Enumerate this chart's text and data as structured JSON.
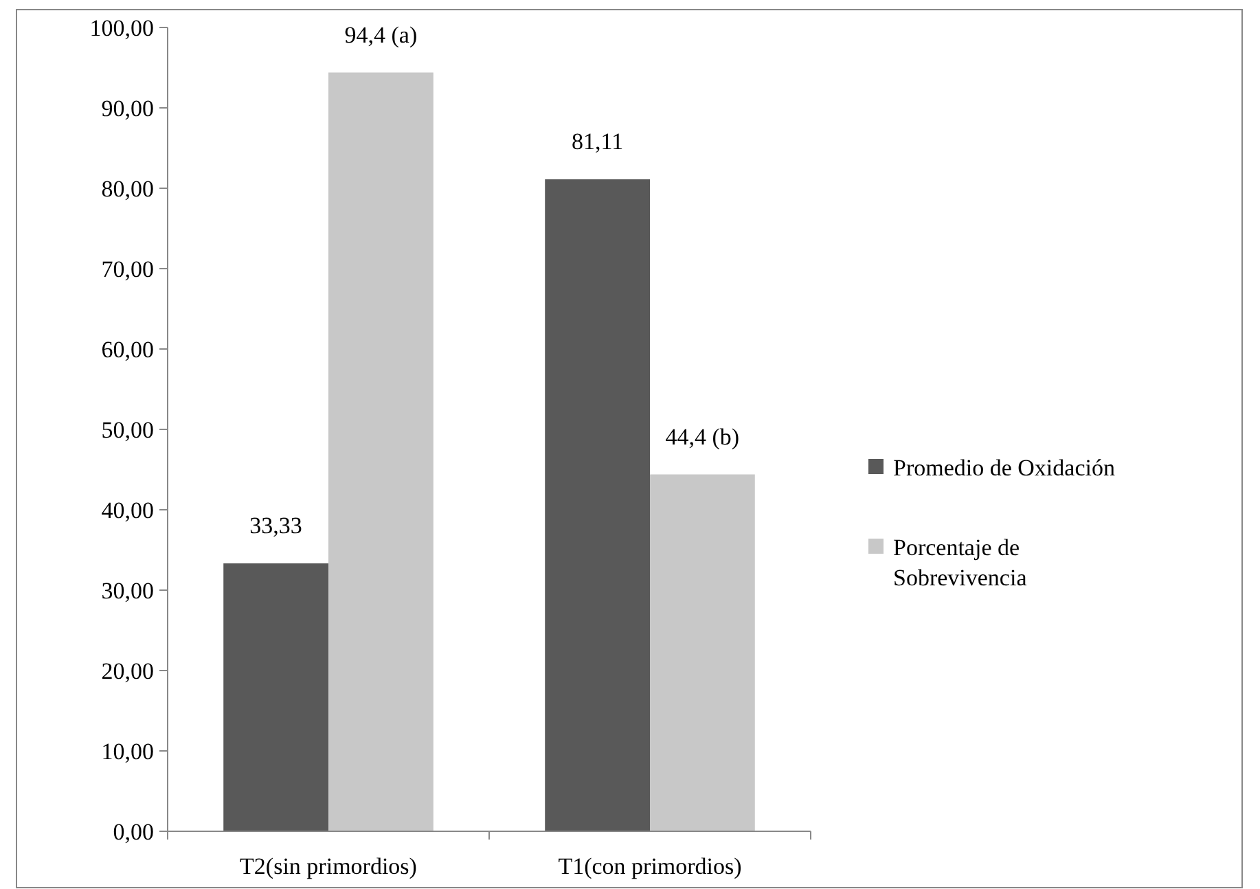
{
  "chart_data": {
    "type": "bar",
    "categories": [
      "T2(sin primordios)",
      "T1(con primordios)"
    ],
    "series": [
      {
        "name": "Promedio de Oxidación",
        "color": "#595959",
        "values": [
          33.33,
          81.11
        ],
        "value_labels": [
          "33,33",
          "81,11"
        ]
      },
      {
        "name": "Porcentaje de Sobrevivencia",
        "color": "#c8c8c8",
        "values": [
          94.4,
          44.4
        ],
        "value_labels": [
          "94,4 (a)",
          "44,4 (b)"
        ]
      }
    ],
    "ylim": [
      0,
      100
    ],
    "yticks": [
      {
        "value": 0,
        "label": "0,00"
      },
      {
        "value": 10,
        "label": "10,00"
      },
      {
        "value": 20,
        "label": "20,00"
      },
      {
        "value": 30,
        "label": "30,00"
      },
      {
        "value": 40,
        "label": "40,00"
      },
      {
        "value": 50,
        "label": "50,00"
      },
      {
        "value": 60,
        "label": "60,00"
      },
      {
        "value": 70,
        "label": "70,00"
      },
      {
        "value": 80,
        "label": "80,00"
      },
      {
        "value": 90,
        "label": "90,00"
      },
      {
        "value": 100,
        "label": "100,00"
      }
    ],
    "grid": false,
    "legend": "right"
  }
}
